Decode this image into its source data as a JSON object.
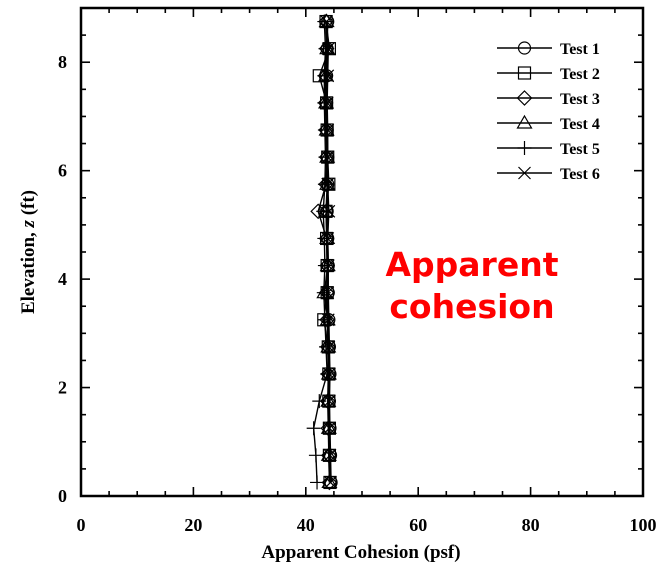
{
  "chart_data": {
    "type": "line",
    "xlabel": "Apparent Cohesion (psf)",
    "ylabel_prefix": "Elevation, ",
    "ylabel_var": "z",
    "ylabel_suffix": " (ft)",
    "xlim": [
      0,
      100
    ],
    "ylim": [
      0,
      9
    ],
    "xticks": [
      0,
      20,
      40,
      60,
      80,
      100
    ],
    "yticks": [
      0,
      2,
      4,
      6,
      8
    ],
    "grid": false,
    "legend_position": "top-right",
    "annotation": [
      "Apparent",
      "cohesion"
    ],
    "z": [
      0.25,
      0.75,
      1.25,
      1.75,
      2.25,
      2.75,
      3.25,
      3.75,
      4.25,
      4.75,
      5.25,
      5.75,
      6.25,
      6.75,
      7.25,
      7.75,
      8.25,
      8.75
    ],
    "series": [
      {
        "name": "Test 1",
        "marker": "circle",
        "values": [
          44.5,
          44.4,
          44.3,
          44.2,
          44.3,
          44.2,
          44.1,
          44.0,
          44.0,
          43.9,
          43.8,
          43.9,
          43.9,
          43.8,
          43.7,
          43.7,
          43.8,
          43.9
        ]
      },
      {
        "name": "Test 2",
        "marker": "square",
        "values": [
          44.3,
          44.2,
          44.2,
          44.1,
          44.1,
          44.0,
          43.2,
          43.8,
          43.8,
          43.7,
          43.6,
          44.1,
          43.9,
          43.8,
          43.7,
          42.4,
          44.2,
          43.6
        ]
      },
      {
        "name": "Test 3",
        "marker": "diamond",
        "values": [
          44.2,
          44.1,
          44.0,
          43.9,
          44.0,
          43.9,
          43.8,
          43.7,
          43.8,
          43.7,
          42.2,
          43.6,
          43.7,
          43.6,
          43.5,
          43.5,
          43.7,
          43.6
        ]
      },
      {
        "name": "Test 4",
        "marker": "triangle",
        "values": [
          44.2,
          44.1,
          44.1,
          44.0,
          44.1,
          44.0,
          43.9,
          43.3,
          43.9,
          43.8,
          43.6,
          43.8,
          43.8,
          43.7,
          43.6,
          43.6,
          43.8,
          43.7
        ]
      },
      {
        "name": "Test 5",
        "marker": "plus",
        "values": [
          42.0,
          41.8,
          41.4,
          42.4,
          43.8,
          43.6,
          43.4,
          43.2,
          43.4,
          43.3,
          43.1,
          43.4,
          43.5,
          43.4,
          43.3,
          43.3,
          43.5,
          43.3
        ]
      },
      {
        "name": "Test 6",
        "marker": "cross",
        "values": [
          44.4,
          44.3,
          44.2,
          44.2,
          44.2,
          44.1,
          44.0,
          43.9,
          44.0,
          43.9,
          44.1,
          43.9,
          43.9,
          43.9,
          43.8,
          43.9,
          44.0,
          43.7
        ]
      }
    ]
  }
}
